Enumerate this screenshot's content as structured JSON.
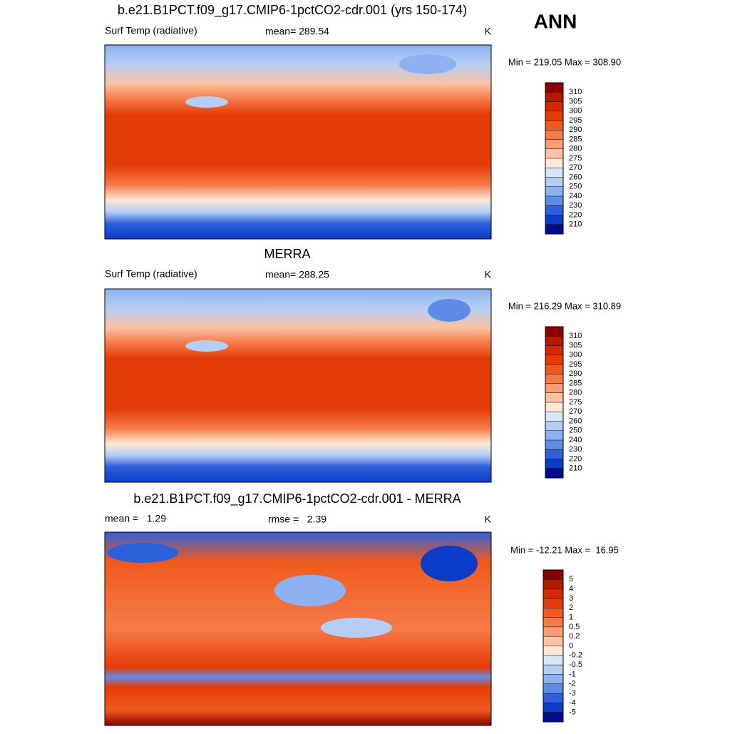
{
  "season": "ANN",
  "colorbar_colors": [
    "#8b0000",
    "#b31a00",
    "#d42800",
    "#e43c08",
    "#f05a1e",
    "#f67a48",
    "#fa9c74",
    "#fcc2a2",
    "#fde8d6",
    "#d8e6fa",
    "#b6cef6",
    "#8eb2f0",
    "#5c8ce6",
    "#2e60dc",
    "#0c3cc6",
    "#000c8e"
  ],
  "panels": [
    {
      "title": "b.e21.B1PCT.f09_g17.CMIP6-1pctCO2-cdr.001 (yrs 150-174)",
      "left_label": "Surf Temp (radiative)",
      "center_label": "mean= 289.54",
      "units": "K",
      "min_max": "Min = 219.05 Max = 308.90",
      "colorbar_labels": [
        "310",
        "305",
        "300",
        "295",
        "290",
        "285",
        "280",
        "275",
        "270",
        "260",
        "250",
        "240",
        "230",
        "220",
        "210"
      ]
    },
    {
      "title": "MERRA",
      "left_label": "Surf Temp (radiative)",
      "center_label": "mean= 288.25",
      "units": "K",
      "min_max": "Min = 216.29 Max = 310.89",
      "colorbar_labels": [
        "310",
        "305",
        "300",
        "295",
        "290",
        "285",
        "280",
        "275",
        "270",
        "260",
        "250",
        "240",
        "230",
        "220",
        "210"
      ]
    },
    {
      "title": "b.e21.B1PCT.f09_g17.CMIP6-1pctCO2-cdr.001 - MERRA",
      "left_label": "mean =   1.29",
      "center_label": "rmse =   2.39",
      "units": "K",
      "min_max": "Min = -12.21 Max =  16.95",
      "colorbar_labels": [
        "5",
        "4",
        "3",
        "2",
        "1",
        "0.5",
        "0.2",
        "0",
        "-0.2",
        "-0.5",
        "-1",
        "-2",
        "-3",
        "-4",
        "-5"
      ]
    }
  ]
}
